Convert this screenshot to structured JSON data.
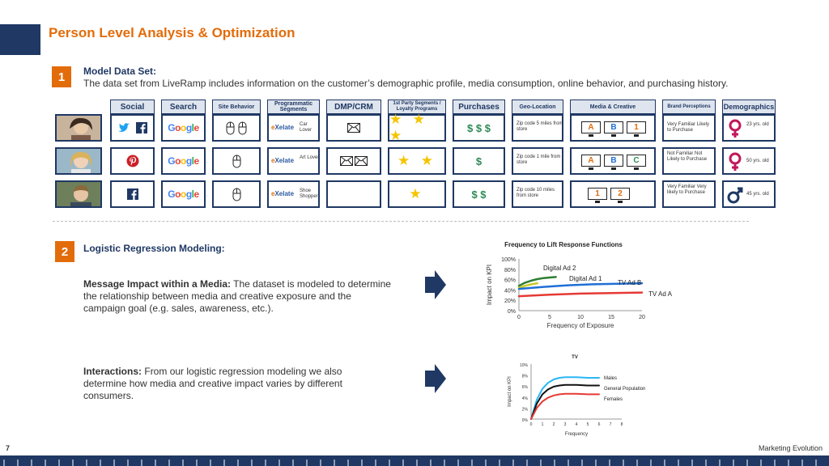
{
  "title": "Person Level Analysis & Optimization",
  "section1": {
    "number": "1",
    "heading": "Model Data Set:",
    "text": "The data set from LiveRamp includes information on the customer’s demographic profile, media consumption, online behavior, and purchasing history."
  },
  "table": {
    "headers": [
      "Social",
      "Search",
      "Site Behavior",
      "Programmatic Segments",
      "DMP/CRM",
      "1st Party Segments / Loyalty Programs",
      "Purchases",
      "Geo-Location",
      "Media & Creative",
      "Brand Perceptions",
      "Demographics"
    ],
    "rows": [
      {
        "social": [
          "twitter-icon",
          "facebook-icon"
        ],
        "search": "Google",
        "site_clicks": 2,
        "segment_brand": "eXelate",
        "segment": "Car Lover",
        "mail_count": 1,
        "stars": "★ ★ ★",
        "purchases": "$ $ $",
        "geo": "Zip code 5 miles from store",
        "media": [
          "A",
          "B",
          "1"
        ],
        "perception": "Very Familiar Likely to Purchase",
        "gender": "female",
        "age": "23 yrs. old"
      },
      {
        "social": [
          "pinterest-icon"
        ],
        "search": "Google",
        "site_clicks": 1,
        "segment_brand": "eXelate",
        "segment": "Art Lover",
        "mail_count": 2,
        "stars": "★ ★",
        "purchases": "$",
        "geo": "Zip code 1 mile from store",
        "media": [
          "A",
          "B",
          "C"
        ],
        "perception": "Not Familiar Not Likely to Purchase",
        "gender": "female",
        "age": "50 yrs. old"
      },
      {
        "social": [
          "facebook-icon"
        ],
        "search": "Google",
        "site_clicks": 1,
        "segment_brand": "eXelate",
        "segment": "Shoe Shopper",
        "mail_count": 0,
        "stars": "★",
        "purchases": "$ $",
        "geo": "Zip code 10 miles from store",
        "media": [
          "1",
          "2"
        ],
        "perception": "Very Familiar Very likely to Purchase",
        "gender": "male",
        "age": "45 yrs. old"
      }
    ]
  },
  "section2": {
    "number": "2",
    "heading": "Logistic Regression Modeling:",
    "impact_label": "Message Impact within a Media:",
    "impact_text": "The dataset is modeled to determine the relationship between media and creative exposure and the campaign goal (e.g. sales, awareness, etc.).",
    "interactions_label": "Interactions:",
    "interactions_text": "From our logistic regression modeling we also determine how media and creative impact varies by different consumers."
  },
  "chart_data": [
    {
      "type": "line",
      "title": "Frequency to Lift Response Functions",
      "xlabel": "Frequency of Exposure",
      "ylabel": "Impact on KPI",
      "xlim": [
        0,
        20
      ],
      "ylim": [
        0,
        100
      ],
      "xticks": [
        "0",
        "5",
        "10",
        "15",
        "20"
      ],
      "yticks": [
        "0%",
        "20%",
        "40%",
        "60%",
        "80%",
        "100%"
      ],
      "series": [
        {
          "name": "Digital Ad 2",
          "color": "#2e7d32",
          "x": [
            0,
            1,
            2,
            3,
            4,
            5,
            6
          ],
          "y": [
            48,
            54,
            58,
            61,
            63,
            64,
            65
          ]
        },
        {
          "name": "Digital Ad 1",
          "color": "#c9c928",
          "x": [
            0,
            1,
            2,
            3
          ],
          "y": [
            44,
            48,
            51,
            53
          ]
        },
        {
          "name": "TV Ad B",
          "color": "#1f6fd6",
          "x": [
            0,
            4,
            8,
            12,
            16,
            20
          ],
          "y": [
            42,
            46,
            49,
            51,
            52,
            53
          ]
        },
        {
          "name": "TV Ad A",
          "color": "#e53935",
          "x": [
            0,
            5,
            10,
            15,
            20
          ],
          "y": [
            28,
            31,
            33,
            34,
            35
          ]
        }
      ]
    },
    {
      "type": "line",
      "title": "TV",
      "xlabel": "Frequency",
      "ylabel": "Impact on KPI",
      "xlim": [
        0,
        8
      ],
      "ylim": [
        0,
        10
      ],
      "xticks": [
        "0",
        "1",
        "2",
        "3",
        "4",
        "5",
        "6",
        "7",
        "8"
      ],
      "yticks": [
        "0%",
        "2%",
        "4%",
        "6%",
        "8%",
        "10%"
      ],
      "series": [
        {
          "name": "Males",
          "color": "#29b6f6",
          "x": [
            0,
            0.5,
            1,
            1.5,
            2,
            2.5,
            3,
            4,
            5,
            6
          ],
          "y": [
            0,
            3.5,
            5.5,
            6.6,
            7.2,
            7.5,
            7.6,
            7.6,
            7.5,
            7.5
          ]
        },
        {
          "name": "General Population",
          "color": "#111111",
          "x": [
            0,
            0.5,
            1,
            1.5,
            2,
            2.5,
            3,
            4,
            5,
            6
          ],
          "y": [
            0,
            2.8,
            4.5,
            5.4,
            5.9,
            6.1,
            6.2,
            6.2,
            6.1,
            6.1
          ]
        },
        {
          "name": "Females",
          "color": "#e53935",
          "x": [
            0,
            0.5,
            1,
            1.5,
            2,
            2.5,
            3,
            4,
            5,
            6
          ],
          "y": [
            0,
            2,
            3.2,
            3.9,
            4.3,
            4.5,
            4.6,
            4.6,
            4.5,
            4.5
          ]
        }
      ]
    }
  ],
  "footer": {
    "page": "7",
    "brand": "Marketing Evolution"
  }
}
